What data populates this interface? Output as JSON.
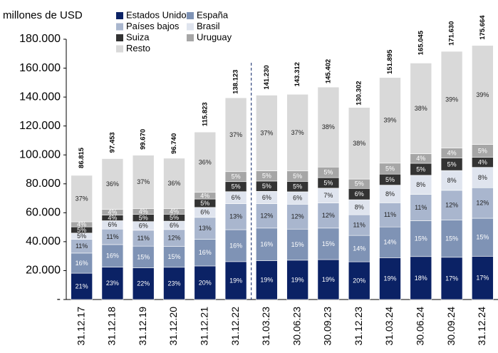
{
  "chart_data": {
    "type": "stacked_bar",
    "y_label": "millones de USD",
    "categories": [
      "31.12.17",
      "31.12.18",
      "31.12.19",
      "31.12.20",
      "31.12.21",
      "31.12.22",
      "31.03.23",
      "30.06.23",
      "30.09.23",
      "31.12.23",
      "31.03.24",
      "30.06.24",
      "30.09.24",
      "31.12.24"
    ],
    "series": [
      {
        "name": "Estados Unidos",
        "color": "#0b2265",
        "values": [
          18200,
          22400,
          21900,
          22300,
          23200,
          26200,
          26800,
          27200,
          27600,
          26100,
          28900,
          29700,
          29200,
          29900
        ],
        "value_labels": [
          "21%",
          "23%",
          "22%",
          "23%",
          "20%",
          "19%",
          "19%",
          "19%",
          "19%",
          "20%",
          "19%",
          "18%",
          "17%",
          "17%"
        ]
      },
      {
        "name": "España",
        "color": "#7f93b5",
        "values": [
          13900,
          15600,
          15000,
          14500,
          18500,
          22100,
          22600,
          21500,
          21800,
          18200,
          21300,
          24800,
          25700,
          26300
        ],
        "value_labels": [
          "16%",
          "16%",
          "15%",
          "15%",
          "16%",
          "16%",
          "16%",
          "15%",
          "15%",
          "14%",
          "14%",
          "15%",
          "15%",
          "15%"
        ]
      },
      {
        "name": "Países bajos",
        "color": "#a9b6ce",
        "values": [
          9550,
          10700,
          11000,
          11600,
          15100,
          18000,
          16900,
          17200,
          17400,
          14300,
          16700,
          18200,
          20600,
          21100
        ],
        "value_labels": [
          "11%",
          "11%",
          "11%",
          "12%",
          "13%",
          "13%",
          "12%",
          "12%",
          "12%",
          "11%",
          "11%",
          "11%",
          "12%",
          "12%"
        ]
      },
      {
        "name": "Brasil",
        "color": "#dfe4ee",
        "values": [
          4300,
          5800,
          6000,
          5800,
          6900,
          8300,
          8500,
          8600,
          10200,
          10400,
          12200,
          13200,
          13700,
          14100
        ],
        "value_labels": [
          "5%",
          "6%",
          "6%",
          "6%",
          "6%",
          "6%",
          "6%",
          "6%",
          "7%",
          "8%",
          "8%",
          "8%",
          "8%",
          "8%"
        ]
      },
      {
        "name": "Suiza",
        "color": "#333333",
        "values": [
          4300,
          3900,
          5000,
          4800,
          5800,
          6900,
          7100,
          7200,
          7300,
          7800,
          7600,
          8300,
          8600,
          7000
        ],
        "value_labels": [
          "5%",
          "4%",
          "5%",
          "5%",
          "5%",
          "5%",
          "5%",
          "5%",
          "5%",
          "6%",
          "5%",
          "5%",
          "5%",
          "4%"
        ]
      },
      {
        "name": "Uruguay",
        "color": "#a6a6a6",
        "values": [
          3500,
          3900,
          4000,
          3900,
          4600,
          6900,
          7100,
          7200,
          7300,
          6500,
          7600,
          6600,
          6900,
          8800
        ],
        "value_labels": [
          "4%",
          "4%",
          "4%",
          "4%",
          "4%",
          "5%",
          "5%",
          "5%",
          "5%",
          "5%",
          "5%",
          "4%",
          "4%",
          "5%"
        ]
      },
      {
        "name": "Resto",
        "color": "#d9d9d9",
        "values": [
          32100,
          35100,
          36900,
          34800,
          41700,
          51100,
          52300,
          53000,
          55300,
          49500,
          59200,
          62700,
          66900,
          68500
        ],
        "value_labels": [
          "37%",
          "36%",
          "37%",
          "36%",
          "36%",
          "37%",
          "37%",
          "37%",
          "38%",
          "38%",
          "39%",
          "38%",
          "39%",
          "39%"
        ]
      }
    ],
    "totals": {
      "values": [
        86815,
        97453,
        99670,
        96740,
        115823,
        138123,
        141230,
        143312,
        145402,
        130302,
        151895,
        165045,
        171630,
        175664
      ],
      "value_labels": [
        "86.815",
        "97.453",
        "99.670",
        "96.740",
        "115.823",
        "138.123",
        "141.230",
        "143.312",
        "145.402",
        "130.302",
        "151.895",
        "165.045",
        "171.630",
        "175.664"
      ]
    },
    "ylim": [
      0,
      180000
    ],
    "yticks": [
      {
        "value": 0,
        "label": "-"
      },
      {
        "value": 20000,
        "label": "20.000"
      },
      {
        "value": 40000,
        "label": "40.000"
      },
      {
        "value": 60000,
        "label": "60.000"
      },
      {
        "value": 80000,
        "label": "80.000"
      },
      {
        "value": 100000,
        "label": "100.000"
      },
      {
        "value": 120000,
        "label": "120.000"
      },
      {
        "value": 140000,
        "label": "140.000"
      },
      {
        "value": 160000,
        "label": "160.000"
      },
      {
        "value": 180000,
        "label": "180.000"
      }
    ]
  }
}
